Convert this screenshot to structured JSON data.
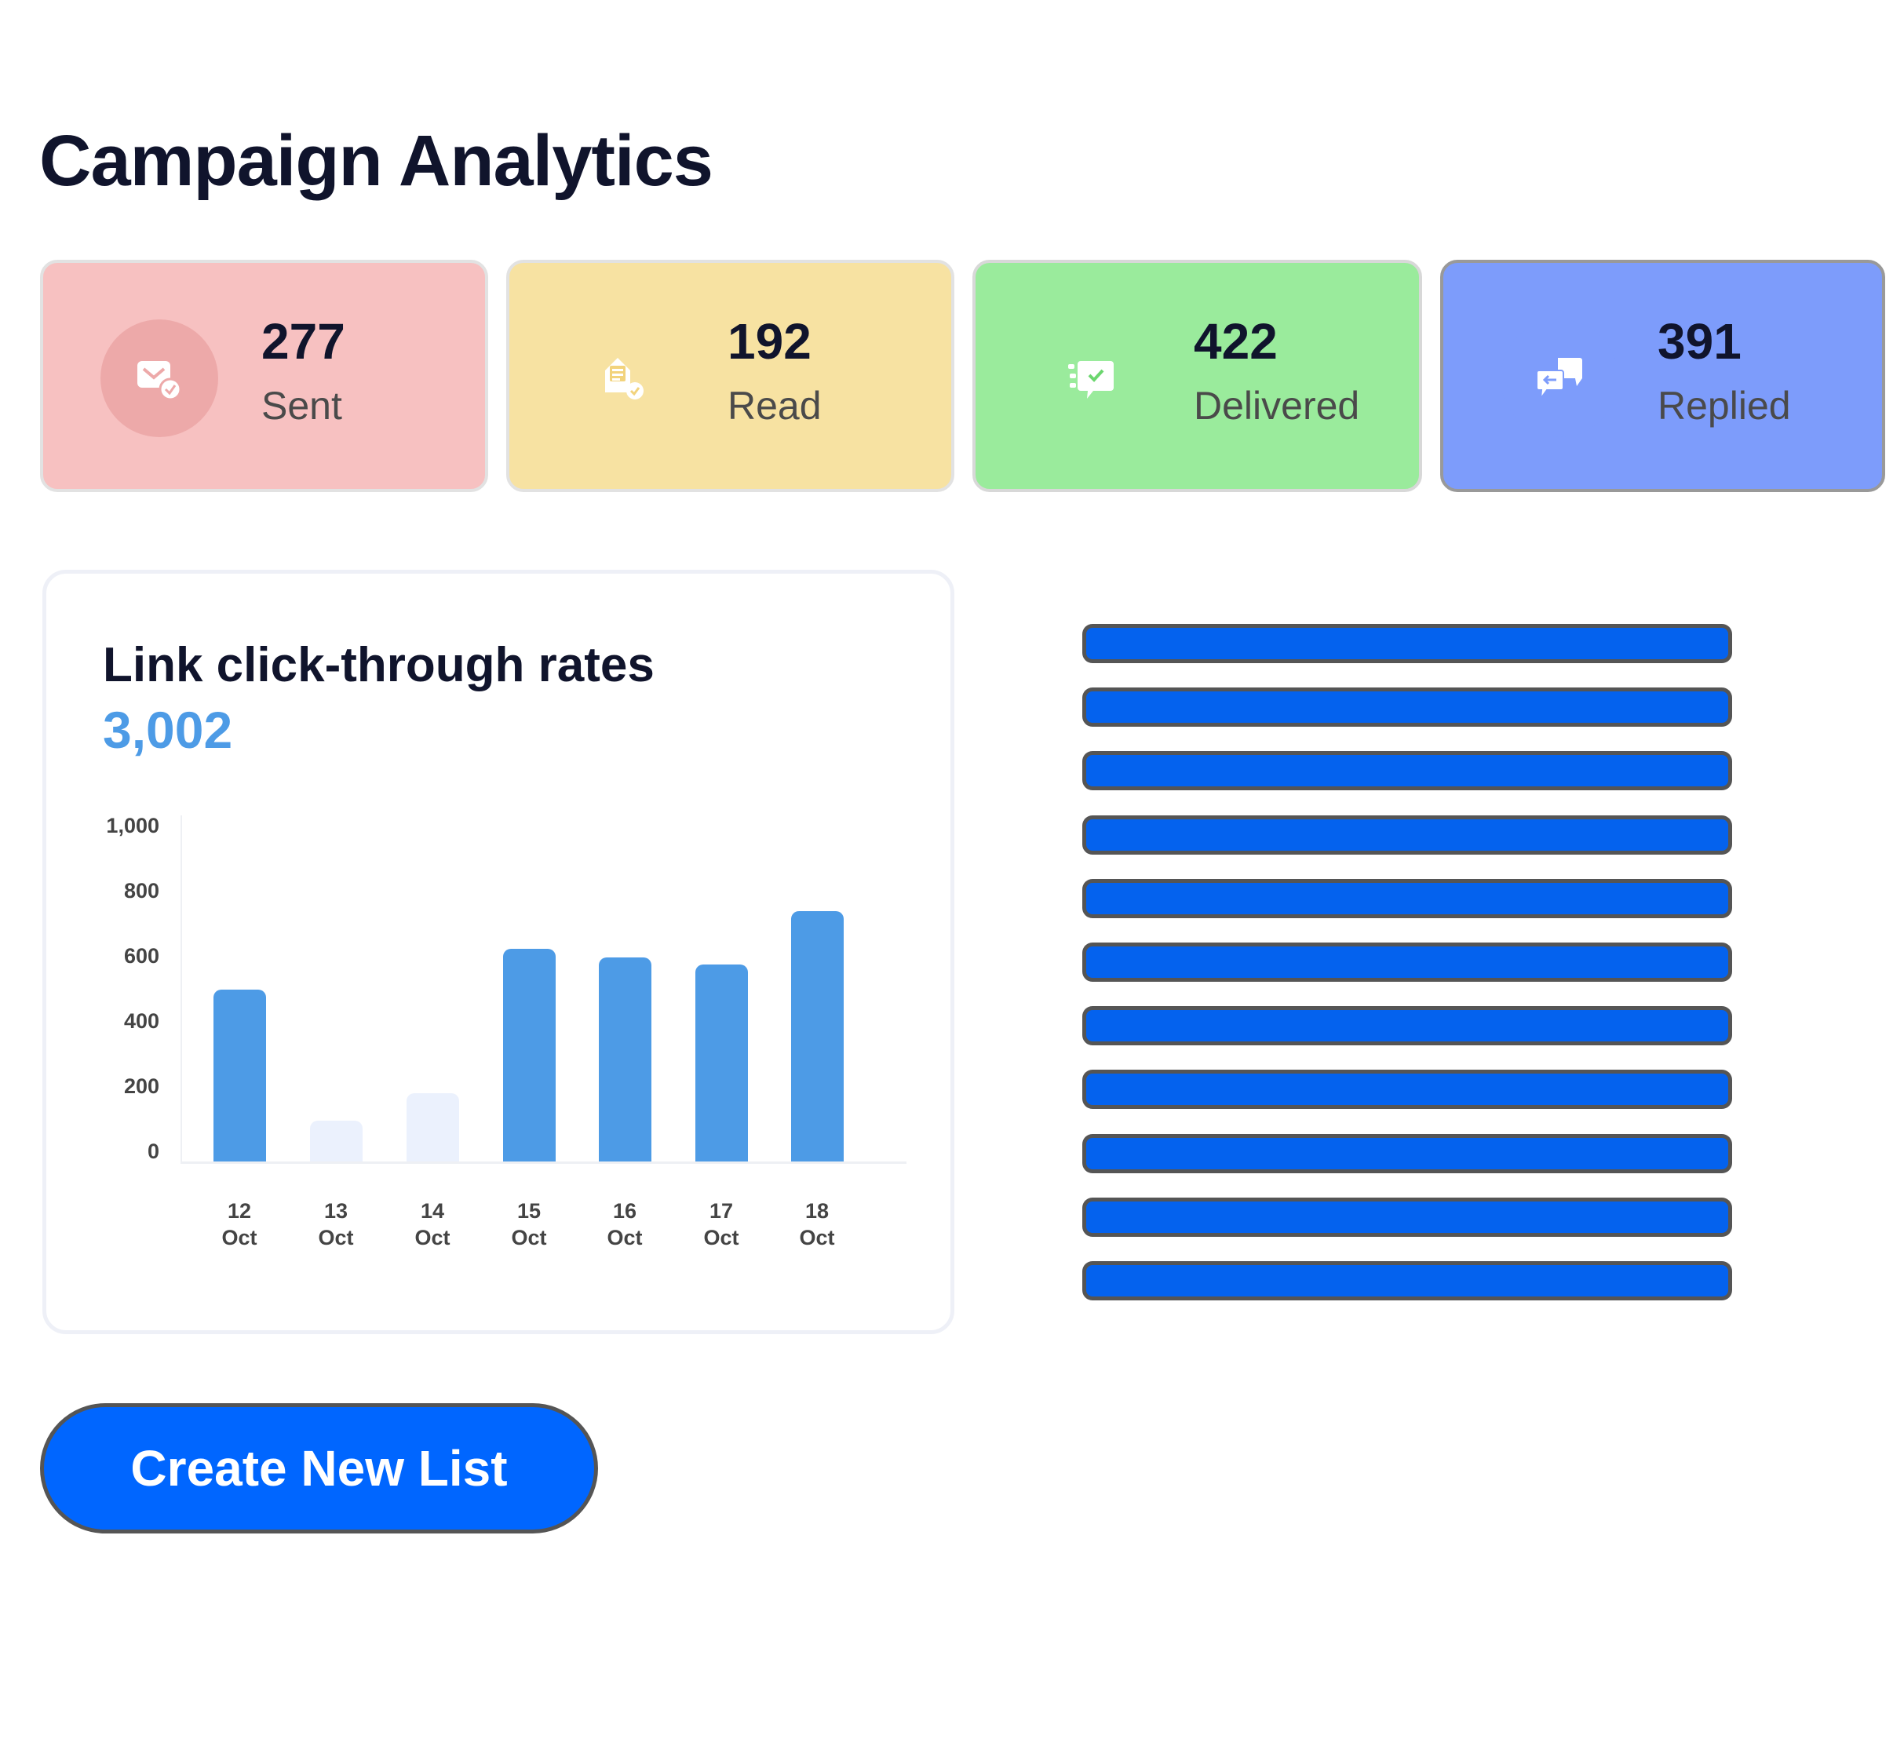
{
  "header": {
    "title": "Campaign Analytics"
  },
  "stats": [
    {
      "value": "277",
      "label": "Sent",
      "icon": "envelope-check-icon",
      "bg": "#f7c1c1",
      "icon_bg": "#eda9a9",
      "accent": "#f29a9a"
    },
    {
      "value": "192",
      "label": "Read",
      "icon": "open-letter-check-icon",
      "bg": "#f7e2a2",
      "icon_bg": "#f7e2a2",
      "accent": "#f2cf6b"
    },
    {
      "value": "422",
      "label": "Delivered",
      "icon": "chat-delivered-icon",
      "bg": "#9aeb9c",
      "icon_bg": "#9aeb9c",
      "accent": "#6bd66e"
    },
    {
      "value": "391",
      "label": "Replied",
      "icon": "chat-reply-icon",
      "bg": "#7d9cfb",
      "icon_bg": "#7d9cfb",
      "accent": "#5b7ff0"
    }
  ],
  "chart_card": {
    "title": "Link click-through rates",
    "total": "3,002"
  },
  "chart_data": {
    "type": "bar",
    "title": "Link click-through rates",
    "categories": [
      "12 Oct",
      "13 Oct",
      "14 Oct",
      "15 Oct",
      "16 Oct",
      "17 Oct",
      "18 Oct"
    ],
    "x_tick_lines": [
      [
        "12",
        "Oct"
      ],
      [
        "13",
        "Oct"
      ],
      [
        "14",
        "Oct"
      ],
      [
        "15",
        "Oct"
      ],
      [
        "16",
        "Oct"
      ],
      [
        "17",
        "Oct"
      ],
      [
        "18",
        "Oct"
      ]
    ],
    "values": [
      500,
      120,
      200,
      620,
      595,
      575,
      730
    ],
    "highlighted": [
      true,
      false,
      false,
      true,
      true,
      true,
      true
    ],
    "colors": {
      "active": "#4d9be6",
      "inactive": "#ebf1fd"
    },
    "yticks": [
      "1,000",
      "800",
      "600",
      "400",
      "200",
      "0"
    ],
    "ylim": [
      0,
      1000
    ],
    "xlabel": "",
    "ylabel": "",
    "grid": false,
    "legend": null
  },
  "skeleton_lines_count": 11,
  "actions": {
    "create_list_label": "Create New List"
  }
}
